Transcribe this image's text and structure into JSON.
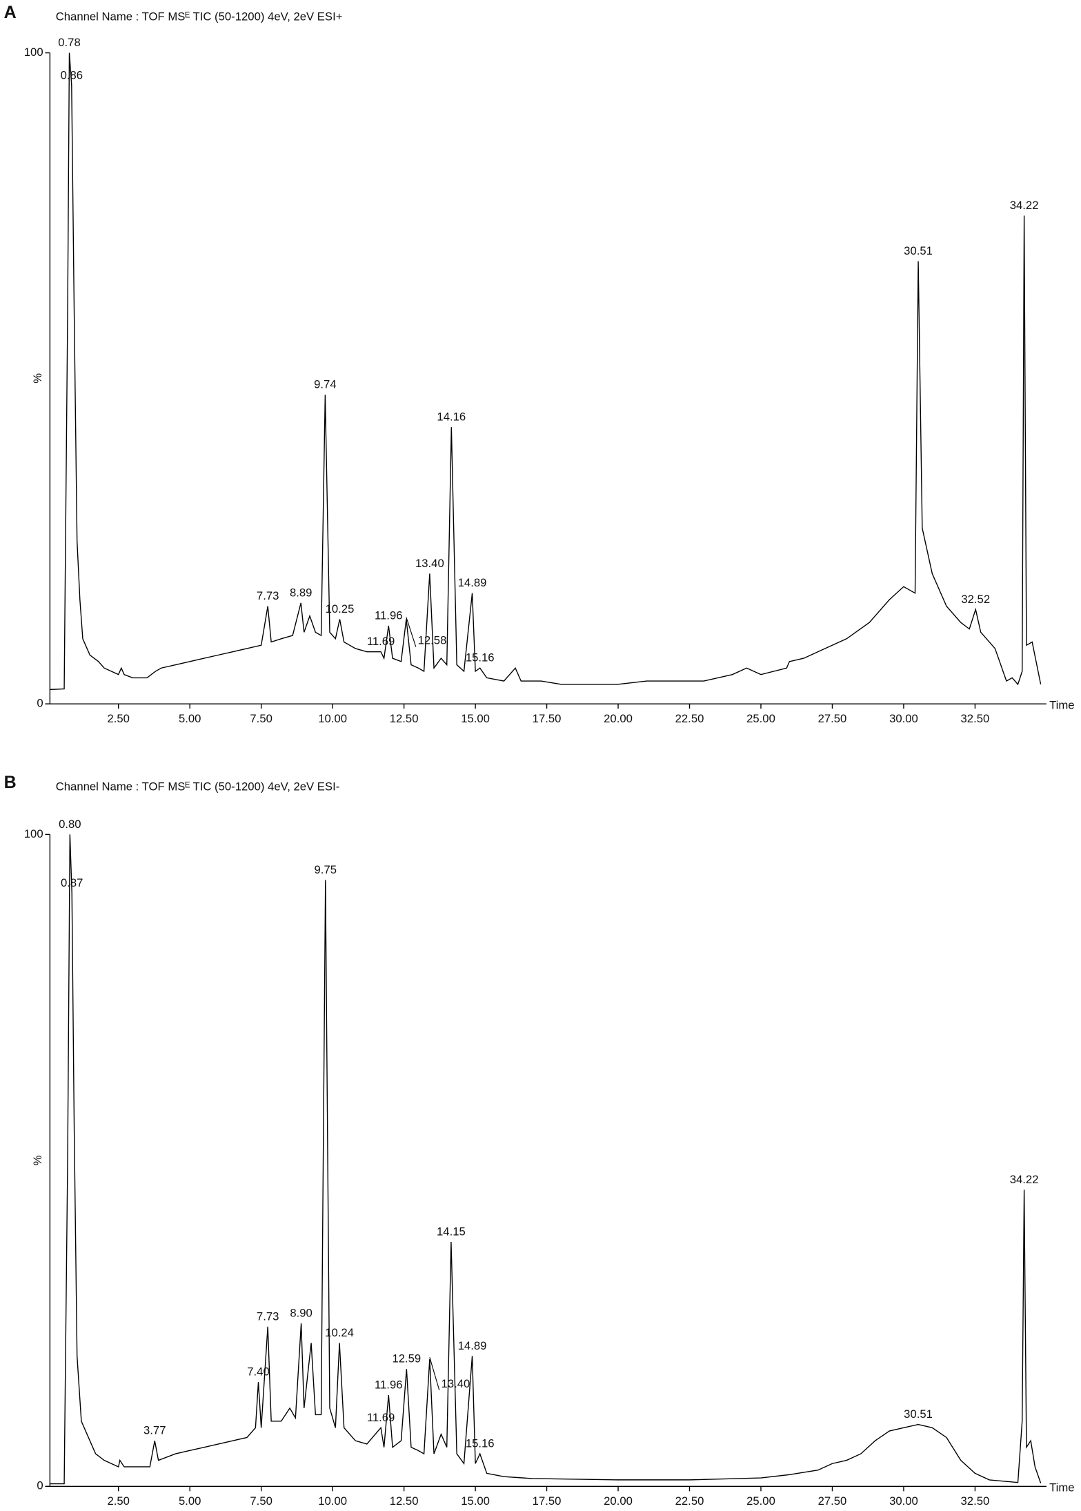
{
  "chart_data": [
    {
      "type": "line",
      "panel": "A",
      "title": "Channel Name : TOF MSᴱ TIC (50-1200) 4eV, 2eV ESI+",
      "ylabel": "%",
      "xlabel": "Time",
      "color": "#000000",
      "xlim": [
        0.1,
        35
      ],
      "ylim": [
        0,
        100
      ],
      "yticks": [
        0,
        100
      ],
      "xticks": [
        {
          "value": 2.5,
          "label": "2.50"
        },
        {
          "value": 5,
          "label": "5.00"
        },
        {
          "value": 7.5,
          "label": "7.50"
        },
        {
          "value": 10,
          "label": "10.00"
        },
        {
          "value": 12.5,
          "label": "12.50"
        },
        {
          "value": 15,
          "label": "15.00"
        },
        {
          "value": 17.5,
          "label": "17.50"
        },
        {
          "value": 20,
          "label": "20.00"
        },
        {
          "value": 22.5,
          "label": "22.50"
        },
        {
          "value": 25,
          "label": "25.00"
        },
        {
          "value": 27.5,
          "label": "27.50"
        },
        {
          "value": 30,
          "label": "30.00"
        },
        {
          "value": 32.5,
          "label": "32.50"
        }
      ],
      "x": [
        0.1,
        0.6,
        0.72,
        0.78,
        0.86,
        0.95,
        1.05,
        1.15,
        1.25,
        1.5,
        1.8,
        2.0,
        2.5,
        2.6,
        2.7,
        3.0,
        3.5,
        3.8,
        4.0,
        4.5,
        5.0,
        5.5,
        6.0,
        6.5,
        7.0,
        7.5,
        7.73,
        7.85,
        8.2,
        8.6,
        8.89,
        9.0,
        9.2,
        9.4,
        9.6,
        9.74,
        9.9,
        10.1,
        10.25,
        10.4,
        10.8,
        11.2,
        11.69,
        11.8,
        11.96,
        12.1,
        12.4,
        12.58,
        12.75,
        13.0,
        13.2,
        13.4,
        13.55,
        13.8,
        14.0,
        14.16,
        14.35,
        14.6,
        14.89,
        15.0,
        15.16,
        15.4,
        16.0,
        16.4,
        16.6,
        17.3,
        18,
        20,
        21,
        22,
        23,
        24,
        24.5,
        25,
        25.9,
        26,
        26.5,
        27,
        28,
        28.8,
        29.5,
        30.0,
        30.4,
        30.51,
        30.65,
        31.0,
        31.5,
        32.0,
        32.3,
        32.52,
        32.7,
        33.2,
        33.6,
        33.8,
        34.0,
        34.15,
        34.22,
        34.3,
        34.5,
        34.8
      ],
      "series": [
        {
          "name": "ESI+",
          "values": [
            2.2,
            2.3,
            60,
            100,
            95,
            60,
            25,
            16,
            10,
            7.5,
            6.5,
            5.5,
            4.5,
            5.5,
            4.5,
            4,
            4,
            5,
            5.5,
            6,
            6.5,
            7,
            7.5,
            8,
            8.5,
            9,
            15,
            9.5,
            10,
            10.5,
            15.5,
            11,
            13.5,
            11,
            10.5,
            47.5,
            11,
            10,
            13,
            9.5,
            8.5,
            8,
            8,
            7,
            12,
            7,
            6.5,
            13,
            6,
            5.5,
            5,
            20,
            5.5,
            7,
            6,
            42.5,
            6,
            5,
            17,
            5,
            5.5,
            4,
            3.5,
            5.5,
            3.5,
            3.5,
            3,
            3,
            3.5,
            3.5,
            3.5,
            4.5,
            5.5,
            4.5,
            5.5,
            6.5,
            7,
            8,
            10,
            12.5,
            16,
            18,
            17,
            68,
            27,
            20,
            15,
            12.5,
            11.5,
            14.5,
            11,
            8.5,
            3.5,
            4,
            3,
            5,
            75,
            9,
            9.5,
            3
          ]
        }
      ],
      "annotations": [
        {
          "label": "0.78",
          "x": 0.78,
          "y": 100
        },
        {
          "label": "0.86",
          "x": 0.86,
          "y": 95
        },
        {
          "label": "7.73",
          "x": 7.73,
          "y": 15
        },
        {
          "label": "8.89",
          "x": 8.89,
          "y": 15.5
        },
        {
          "label": "9.74",
          "x": 9.74,
          "y": 47.5
        },
        {
          "label": "10.25",
          "x": 10.25,
          "y": 13
        },
        {
          "label": "11.69",
          "x": 11.69,
          "y": 8
        },
        {
          "label": "11.96",
          "x": 11.96,
          "y": 12
        },
        {
          "label": "12.58",
          "x": 12.58,
          "y": 13
        },
        {
          "label": "13.40",
          "x": 13.4,
          "y": 20
        },
        {
          "label": "14.16",
          "x": 14.16,
          "y": 42.5
        },
        {
          "label": "14.89",
          "x": 14.89,
          "y": 17
        },
        {
          "label": "15.16",
          "x": 15.16,
          "y": 5.5
        },
        {
          "label": "30.51",
          "x": 30.51,
          "y": 68
        },
        {
          "label": "32.52",
          "x": 32.52,
          "y": 14.5
        },
        {
          "label": "34.22",
          "x": 34.22,
          "y": 75
        }
      ]
    },
    {
      "type": "line",
      "panel": "B",
      "title": "Channel Name : TOF MSᴱ TIC (50-1200) 4eV, 2eV ESI-",
      "ylabel": "%",
      "xlabel": "Time",
      "color": "#000000",
      "xlim": [
        0.1,
        35
      ],
      "ylim": [
        0,
        100
      ],
      "yticks": [
        0,
        100
      ],
      "xticks": [
        {
          "value": 2.5,
          "label": "2.50"
        },
        {
          "value": 5,
          "label": "5.00"
        },
        {
          "value": 7.5,
          "label": "7.50"
        },
        {
          "value": 10,
          "label": "10.00"
        },
        {
          "value": 12.5,
          "label": "12.50"
        },
        {
          "value": 15,
          "label": "15.00"
        },
        {
          "value": 17.5,
          "label": "17.50"
        },
        {
          "value": 20,
          "label": "20.00"
        },
        {
          "value": 22.5,
          "label": "22.50"
        },
        {
          "value": 25,
          "label": "25.00"
        },
        {
          "value": 27.5,
          "label": "27.50"
        },
        {
          "value": 30,
          "label": "30.00"
        },
        {
          "value": 32.5,
          "label": "32.50"
        }
      ],
      "x": [
        0.1,
        0.6,
        0.72,
        0.8,
        0.87,
        0.95,
        1.05,
        1.2,
        1.5,
        1.7,
        2.0,
        2.5,
        2.55,
        2.7,
        3.0,
        3.6,
        3.77,
        3.9,
        4.5,
        5.0,
        5.5,
        6.0,
        6.5,
        7.0,
        7.3,
        7.4,
        7.5,
        7.73,
        7.85,
        8.2,
        8.5,
        8.7,
        8.9,
        9.0,
        9.25,
        9.4,
        9.6,
        9.75,
        9.9,
        10.1,
        10.24,
        10.4,
        10.8,
        11.2,
        11.69,
        11.8,
        11.96,
        12.1,
        12.4,
        12.59,
        12.75,
        13.0,
        13.2,
        13.4,
        13.55,
        13.8,
        14.0,
        14.15,
        14.35,
        14.6,
        14.89,
        15.0,
        15.16,
        15.4,
        16,
        17,
        20,
        22.5,
        25,
        26,
        27,
        27.5,
        28,
        28.5,
        29,
        29.5,
        30,
        30.51,
        31,
        31.5,
        32,
        32.5,
        33,
        33.5,
        34.0,
        34.15,
        34.22,
        34.3,
        34.45,
        34.6,
        34.8
      ],
      "series": [
        {
          "name": "ESI-",
          "values": [
            0.4,
            0.4,
            50,
            100,
            91,
            55,
            20,
            10,
            7,
            5,
            4,
            3,
            4,
            3,
            3,
            3,
            7,
            4,
            5,
            5.5,
            6,
            6.5,
            7,
            7.5,
            9,
            16,
            9,
            24.5,
            10,
            10,
            12,
            10.5,
            25,
            12,
            22,
            11,
            11,
            93,
            12,
            9,
            22,
            9,
            7,
            6.5,
            9,
            6,
            14,
            6,
            7,
            18,
            6,
            5.5,
            5,
            19.5,
            5,
            8,
            6,
            37.5,
            5,
            3.5,
            20,
            3.5,
            5,
            2,
            1.5,
            1.2,
            1,
            1,
            1.3,
            1.8,
            2.5,
            3.5,
            4,
            5,
            7,
            8.5,
            9,
            9.5,
            9,
            7.5,
            4,
            2,
            1,
            0.8,
            0.6,
            10,
            45.5,
            6,
            7,
            3,
            0.5
          ]
        }
      ],
      "annotations": [
        {
          "label": "0.80",
          "x": 0.8,
          "y": 100
        },
        {
          "label": "0.87",
          "x": 0.87,
          "y": 91
        },
        {
          "label": "3.77",
          "x": 3.77,
          "y": 7
        },
        {
          "label": "7.40",
          "x": 7.4,
          "y": 16
        },
        {
          "label": "7.73",
          "x": 7.73,
          "y": 24.5
        },
        {
          "label": "8.90",
          "x": 8.9,
          "y": 25
        },
        {
          "label": "9.75",
          "x": 9.75,
          "y": 93
        },
        {
          "label": "10.24",
          "x": 10.24,
          "y": 22
        },
        {
          "label": "11.69",
          "x": 11.69,
          "y": 9
        },
        {
          "label": "11.96",
          "x": 11.96,
          "y": 14
        },
        {
          "label": "12.59",
          "x": 12.59,
          "y": 18
        },
        {
          "label": "13.40",
          "x": 13.4,
          "y": 19.5
        },
        {
          "label": "14.15",
          "x": 14.15,
          "y": 37.5
        },
        {
          "label": "14.89",
          "x": 14.89,
          "y": 20
        },
        {
          "label": "15.16",
          "x": 15.16,
          "y": 5
        },
        {
          "label": "30.51",
          "x": 30.51,
          "y": 9.5
        },
        {
          "label": "34.22",
          "x": 34.22,
          "y": 45.5
        }
      ]
    }
  ]
}
